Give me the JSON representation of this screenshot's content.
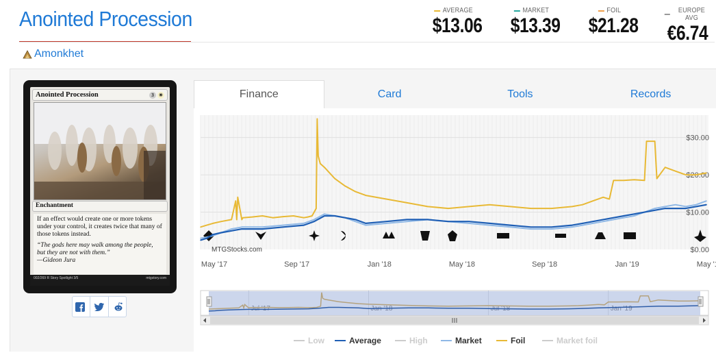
{
  "header": {
    "title": "Anointed Procession",
    "set_name": "Amonkhet"
  },
  "prices": [
    {
      "label": "AVERAGE",
      "value": "$13.06",
      "color": "#e8b935"
    },
    {
      "label": "MARKET",
      "value": "$13.39",
      "color": "#28a8a0"
    },
    {
      "label": "FOIL",
      "value": "$21.28",
      "color": "#f0a04b"
    },
    {
      "label": "EUROPE AVG",
      "value": "€6.74",
      "color": "#999999"
    }
  ],
  "card": {
    "name": "Anointed Procession",
    "mana": [
      "3",
      "W"
    ],
    "type_line": "Enchantment",
    "rules_text": "If an effect would create one or more tokens under your control, it creates twice that many of those tokens instead.",
    "flavor_text": "“The gods here may walk among the people, but they are not with them.”",
    "flavor_attribution": "—Gideon Jura",
    "footer_left": "002/269 R  Story Spotlight 3/5",
    "footer_right": "mtgstory.com"
  },
  "share": {
    "facebook_icon": "facebook-icon",
    "twitter_icon": "twitter-icon",
    "reddit_icon": "reddit-icon"
  },
  "tabs": [
    {
      "label": "Finance",
      "active": true
    },
    {
      "label": "Card",
      "active": false
    },
    {
      "label": "Tools",
      "active": false
    },
    {
      "label": "Records",
      "active": false
    }
  ],
  "chart_data": {
    "type": "line",
    "y_tick_labels": [
      "$30.00",
      "$20.00",
      "$10.00",
      "$0.00"
    ],
    "y_ticks": [
      30,
      20,
      10,
      0
    ],
    "ylim": [
      0,
      36
    ],
    "x_tick_labels": [
      "May '17",
      "Sep '17",
      "Jan '18",
      "May '18",
      "Sep '18",
      "Jan '19",
      "May '19"
    ],
    "x_ticks": [
      0,
      4,
      8,
      12,
      16,
      20,
      24
    ],
    "xlim": [
      0,
      24.6
    ],
    "watermark": "MTGStocks.com",
    "grid": true,
    "legend_position": "bottom",
    "legend": [
      {
        "name": "Low",
        "color": "#cccccc",
        "enabled": false
      },
      {
        "name": "Average",
        "color": "#1f5fb5",
        "enabled": true
      },
      {
        "name": "High",
        "color": "#cccccc",
        "enabled": false
      },
      {
        "name": "Market",
        "color": "#8fb8e6",
        "enabled": true
      },
      {
        "name": "Foil",
        "color": "#e8b935",
        "enabled": true
      },
      {
        "name": "Market foil",
        "color": "#cccccc",
        "enabled": false
      }
    ],
    "navigator_labels": [
      "Jul '17",
      "Jan '18",
      "Jul '18",
      "Jan '19"
    ],
    "navigator_ticks": [
      2,
      8,
      14,
      20
    ],
    "series": [
      {
        "name": "Foil",
        "color": "#e8b935",
        "x": [
          0,
          0.3,
          0.6,
          1,
          1.5,
          1.7,
          1.75,
          1.8,
          2.0,
          2.05,
          2.5,
          3,
          3.5,
          4,
          4.5,
          5,
          5.2,
          5.4,
          5.6,
          5.65,
          5.7,
          5.8,
          6,
          6.5,
          7,
          7.5,
          8,
          9,
          10,
          11,
          12,
          13,
          14,
          15,
          16,
          17,
          18,
          18.5,
          19,
          19.5,
          19.8,
          20,
          20.5,
          21,
          21.5,
          21.6,
          22,
          22.1,
          22.5,
          23,
          23.5,
          24,
          24.5
        ],
        "y": [
          6,
          6.5,
          7,
          7.5,
          8,
          13,
          8,
          14,
          8,
          8.5,
          8.7,
          9,
          8.5,
          8.8,
          9,
          8.5,
          8.7,
          9,
          11,
          35,
          25,
          23,
          22,
          19,
          17,
          15.5,
          14.5,
          13.5,
          12.5,
          11.5,
          11,
          11.5,
          12,
          11.5,
          11,
          11,
          11.5,
          12,
          13,
          14,
          13.5,
          18.5,
          18.5,
          18.7,
          18.5,
          29,
          29,
          19,
          22,
          21,
          20,
          20,
          20.5
        ]
      },
      {
        "name": "Market",
        "color": "#8fb8e6",
        "x": [
          0,
          0.5,
          1,
          1.5,
          2,
          3,
          4,
          5,
          5.5,
          6,
          6.5,
          7,
          7.5,
          8,
          9,
          10,
          11,
          12,
          13,
          14,
          15,
          16,
          17,
          18,
          18.5,
          19,
          19.5,
          20,
          20.5,
          21,
          21.5,
          22,
          22.5,
          23,
          23.5,
          24,
          24.5
        ],
        "y": [
          3,
          3.5,
          4.5,
          5.5,
          6,
          6,
          6.5,
          7,
          8,
          9.5,
          9,
          8.5,
          7.5,
          6.5,
          7,
          7.5,
          8,
          7.5,
          7,
          6.5,
          6,
          5.5,
          5.5,
          6,
          6.5,
          7,
          7.5,
          8,
          8.5,
          9,
          10,
          11,
          11.5,
          12,
          11.5,
          12,
          13
        ]
      },
      {
        "name": "Average",
        "color": "#1f5fb5",
        "x": [
          0,
          0.3,
          0.6,
          1,
          1.5,
          2,
          3,
          4,
          5,
          5.5,
          6,
          6.5,
          7,
          7.5,
          8,
          9,
          10,
          11,
          12,
          13,
          14,
          15,
          16,
          17,
          18,
          18.5,
          19,
          19.5,
          20,
          20.5,
          21,
          21.5,
          22,
          22.5,
          23,
          23.5,
          24,
          24.5
        ],
        "y": [
          2.5,
          3,
          4,
          4.5,
          5,
          5.5,
          5.5,
          6,
          6.5,
          7.5,
          9,
          9,
          8.5,
          8,
          7,
          7.5,
          8,
          8,
          7.5,
          7.5,
          7,
          6.5,
          6,
          6,
          6.5,
          7,
          7.5,
          8,
          8.5,
          9,
          9.5,
          10,
          10.5,
          11,
          11,
          11,
          11.5,
          12
        ]
      }
    ]
  }
}
